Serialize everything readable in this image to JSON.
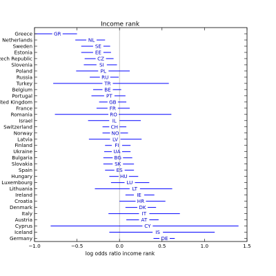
{
  "chart_data": {
    "type": "errorbar",
    "title": "Income rank",
    "xlabel": "log odds ratio income rank",
    "ylabel": "",
    "xlim": [
      -1.0,
      1.5
    ],
    "xticks": [
      -1.0,
      -0.5,
      0.0,
      0.5,
      1.0,
      1.5
    ],
    "xtick_labels": [
      "−1.0",
      "−0.5",
      "0.0",
      "0.5",
      "1.0",
      "1.5"
    ],
    "reference_line_x": 0.0,
    "line_color": "#0000ff",
    "points": [
      {
        "country": "Greece",
        "code": "GR",
        "low": -1.0,
        "estimate": -0.73,
        "high": -0.5
      },
      {
        "country": "Netherlands",
        "code": "NL",
        "low": -0.52,
        "estimate": -0.33,
        "high": -0.17
      },
      {
        "country": "Sweden",
        "code": "SE",
        "low": -0.45,
        "estimate": -0.25,
        "high": -0.11
      },
      {
        "country": "Estonia",
        "code": "EE",
        "low": -0.45,
        "estimate": -0.25,
        "high": -0.1
      },
      {
        "country": "Czech Republic",
        "code": "CZ",
        "low": -0.41,
        "estimate": -0.22,
        "high": -0.07
      },
      {
        "country": "Slovenia",
        "code": "SI",
        "low": -0.42,
        "estimate": -0.21,
        "high": -0.03
      },
      {
        "country": "Poland",
        "code": "PL",
        "low": -0.51,
        "estimate": -0.19,
        "high": 0.12
      },
      {
        "country": "Russia",
        "code": "RU",
        "low": -0.35,
        "estimate": -0.17,
        "high": -0.01
      },
      {
        "country": "Turkey",
        "code": "TR",
        "low": -0.78,
        "estimate": -0.14,
        "high": 0.58
      },
      {
        "country": "Belgium",
        "code": "BE",
        "low": -0.31,
        "estimate": -0.14,
        "high": 0.02
      },
      {
        "country": "Portugal",
        "code": "PT",
        "low": -0.33,
        "estimate": -0.12,
        "high": 0.07
      },
      {
        "country": "United Kingdom",
        "code": "GB",
        "low": -0.24,
        "estimate": -0.08,
        "high": 0.08
      },
      {
        "country": "France",
        "code": "FR",
        "low": -0.27,
        "estimate": -0.08,
        "high": 0.12
      },
      {
        "country": "Romania",
        "code": "RO",
        "low": -0.76,
        "estimate": -0.07,
        "high": 0.61
      },
      {
        "country": "Israel",
        "code": "IL",
        "low": -0.37,
        "estimate": -0.06,
        "high": 0.25
      },
      {
        "country": "Switzerland",
        "code": "CH",
        "low": -0.2,
        "estimate": -0.06,
        "high": 0.08
      },
      {
        "country": "Norway",
        "code": "NO",
        "low": -0.2,
        "estimate": -0.05,
        "high": 0.1
      },
      {
        "country": "Latvia",
        "code": "LV",
        "low": -0.36,
        "estimate": -0.05,
        "high": 0.26
      },
      {
        "country": "Finland",
        "code": "FI",
        "low": -0.17,
        "estimate": -0.03,
        "high": 0.13
      },
      {
        "country": "Ukraine",
        "code": "UA",
        "low": -0.18,
        "estimate": -0.03,
        "high": 0.13
      },
      {
        "country": "Bulgaria",
        "code": "BG",
        "low": -0.19,
        "estimate": -0.02,
        "high": 0.15
      },
      {
        "country": "Slovakia",
        "code": "SK",
        "low": -0.19,
        "estimate": -0.02,
        "high": 0.17
      },
      {
        "country": "Spain",
        "code": "ES",
        "low": -0.17,
        "estimate": 0.0,
        "high": 0.17
      },
      {
        "country": "Hungary",
        "code": "HU",
        "low": -0.12,
        "estimate": 0.05,
        "high": 0.22
      },
      {
        "country": "Luxembourg",
        "code": "LU",
        "low": -0.1,
        "estimate": 0.12,
        "high": 0.35
      },
      {
        "country": "Lithuania",
        "code": "LT",
        "low": -0.29,
        "estimate": 0.18,
        "high": 0.62
      },
      {
        "country": "Ireland",
        "code": "IE",
        "low": 0.07,
        "estimate": 0.23,
        "high": 0.41
      },
      {
        "country": "Croatia",
        "code": "HR",
        "low": 0.0,
        "estimate": 0.25,
        "high": 0.54
      },
      {
        "country": "Denmark",
        "code": "DK",
        "low": 0.07,
        "estimate": 0.27,
        "high": 0.43
      },
      {
        "country": "Italy",
        "code": "IT",
        "low": -0.13,
        "estimate": 0.29,
        "high": 0.71
      },
      {
        "country": "Austria",
        "code": "AT",
        "low": 0.08,
        "estimate": 0.29,
        "high": 0.46
      },
      {
        "country": "Cyprus",
        "code": "CY",
        "low": -0.81,
        "estimate": 0.33,
        "high": 1.4
      },
      {
        "country": "Iceland",
        "code": "IS",
        "low": -0.12,
        "estimate": 0.45,
        "high": 1.12
      },
      {
        "country": "Germany",
        "code": "DE",
        "low": 0.4,
        "estimate": 0.53,
        "high": 0.65
      }
    ]
  }
}
